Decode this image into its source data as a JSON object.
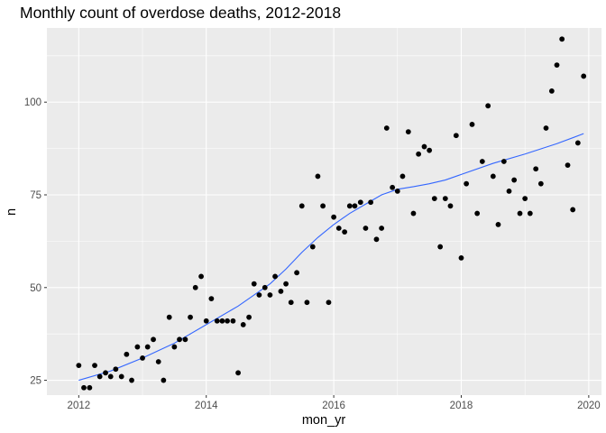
{
  "chart_data": {
    "type": "scatter",
    "title": "Monthly count of overdose deaths, 2012-2018",
    "xlabel": "mon_yr",
    "ylabel": "n",
    "xlim": [
      2011.5,
      2020.2
    ],
    "ylim": [
      21.0,
      120.0
    ],
    "x_ticks": [
      2012,
      2014,
      2016,
      2018,
      2020
    ],
    "x_tick_labels": [
      "2012",
      "2014",
      "2016",
      "2018",
      "2020"
    ],
    "y_ticks": [
      25,
      50,
      75,
      100
    ],
    "y_tick_labels": [
      "25",
      "50",
      "75",
      "100"
    ],
    "grid": true,
    "legend": "none",
    "colors": {
      "panel_background": "#ebebeb",
      "grid": "#ffffff",
      "points": "#000000",
      "smooth_line": "#3366ff"
    },
    "series": [
      {
        "type": "scatter",
        "x": [
          2012.0,
          2012.08,
          2012.17,
          2012.25,
          2012.33,
          2012.42,
          2012.5,
          2012.58,
          2012.67,
          2012.75,
          2012.83,
          2012.92,
          2013.0,
          2013.08,
          2013.17,
          2013.25,
          2013.33,
          2013.42,
          2013.5,
          2013.58,
          2013.67,
          2013.75,
          2013.83,
          2013.92,
          2014.0,
          2014.08,
          2014.17,
          2014.25,
          2014.33,
          2014.42,
          2014.5,
          2014.58,
          2014.67,
          2014.75,
          2014.83,
          2014.92,
          2015.0,
          2015.08,
          2015.17,
          2015.25,
          2015.33,
          2015.42,
          2015.5,
          2015.58,
          2015.67,
          2015.75,
          2015.83,
          2015.92,
          2016.0,
          2016.08,
          2016.17,
          2016.25,
          2016.33,
          2016.42,
          2016.5,
          2016.58,
          2016.67,
          2016.75,
          2016.83,
          2016.92,
          2017.0,
          2017.08,
          2017.17,
          2017.25,
          2017.33,
          2017.42,
          2017.5,
          2017.58,
          2017.67,
          2017.75,
          2017.83,
          2017.92,
          2018.0,
          2018.08,
          2018.17,
          2018.25,
          2018.33,
          2018.42,
          2018.5,
          2018.58,
          2018.67,
          2018.75,
          2018.83,
          2018.92,
          2019.0,
          2019.08,
          2019.17,
          2019.25,
          2019.33,
          2019.42,
          2019.5,
          2019.58,
          2019.67,
          2019.75,
          2019.83,
          2019.92
        ],
        "y": [
          29,
          23,
          23,
          29,
          26,
          27,
          26,
          28,
          26,
          32,
          25,
          34,
          31,
          34,
          36,
          30,
          25,
          42,
          34,
          36,
          36,
          42,
          50,
          53,
          41,
          47,
          41,
          41,
          41,
          41,
          27,
          40,
          42,
          51,
          48,
          50,
          48,
          53,
          49,
          51,
          46,
          54,
          72,
          46,
          61,
          80,
          72,
          46,
          69,
          66,
          65,
          72,
          72,
          73,
          66,
          73,
          63,
          66,
          93,
          77,
          76,
          80,
          92,
          70,
          86,
          88,
          87,
          74,
          61,
          74,
          72,
          91,
          58,
          78,
          94,
          70,
          84,
          99,
          80,
          67,
          84,
          76,
          79,
          70,
          74,
          70,
          82,
          78,
          93,
          103,
          110,
          117,
          83,
          71,
          89,
          107
        ]
      },
      {
        "type": "line",
        "x": [
          2012.0,
          2012.5,
          2013.0,
          2013.5,
          2014.0,
          2014.5,
          2015.0,
          2015.25,
          2015.5,
          2015.75,
          2016.0,
          2016.25,
          2016.5,
          2016.75,
          2017.0,
          2017.25,
          2017.5,
          2017.75,
          2018.0,
          2018.5,
          2019.0,
          2019.5,
          2019.92
        ],
        "y": [
          25.0,
          27.5,
          31.0,
          35.0,
          40.0,
          45.0,
          51.0,
          55.0,
          59.5,
          63.5,
          67.0,
          70.0,
          72.5,
          75.0,
          76.5,
          77.2,
          78.0,
          79.0,
          80.5,
          83.5,
          86.0,
          88.8,
          91.5
        ]
      }
    ]
  }
}
